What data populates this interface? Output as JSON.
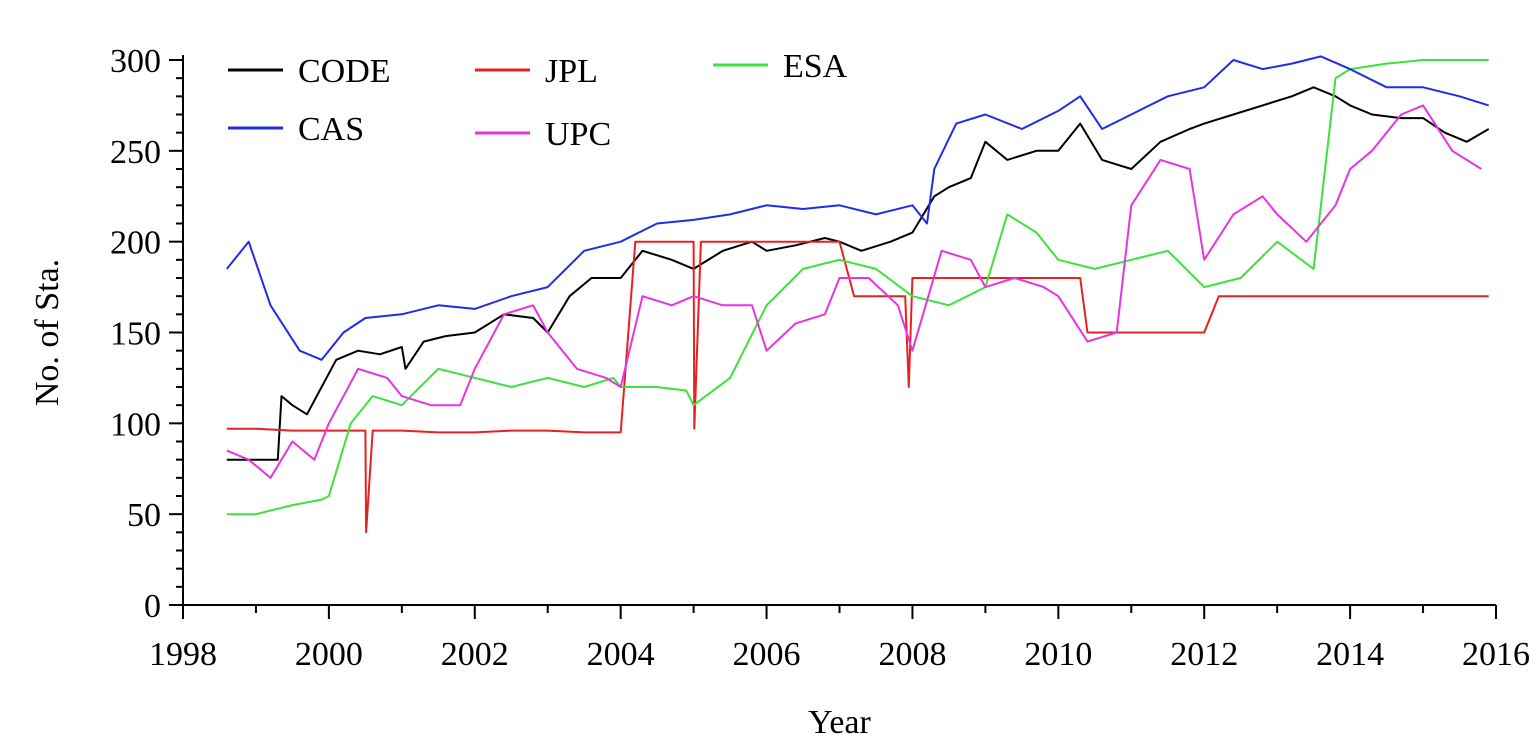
{
  "chart_data": {
    "type": "line",
    "title": "",
    "xlabel": "Year",
    "ylabel": "No. of Sta.",
    "xlim": [
      1998,
      2016
    ],
    "ylim": [
      0,
      300
    ],
    "xticks": [
      1998,
      2000,
      2002,
      2004,
      2006,
      2008,
      2010,
      2012,
      2014,
      2016
    ],
    "yticks": [
      0,
      50,
      100,
      150,
      200,
      250,
      300
    ],
    "grid": false,
    "legend_position": "top-left",
    "series": [
      {
        "name": "CODE",
        "color": "#000000",
        "x": [
          1998.6,
          1999.3,
          1999.35,
          1999.5,
          1999.7,
          1999.9,
          2000.1,
          2000.4,
          2000.7,
          2001.0,
          2001.05,
          2001.3,
          2001.6,
          2002.0,
          2002.4,
          2002.8,
          2003.0,
          2003.3,
          2003.6,
          2004.0,
          2004.3,
          2004.7,
          2005.0,
          2005.4,
          2005.8,
          2006.0,
          2006.4,
          2006.8,
          2007.0,
          2007.3,
          2007.7,
          2008.0,
          2008.3,
          2008.5,
          2008.8,
          2009.0,
          2009.3,
          2009.7,
          2010.0,
          2010.3,
          2010.6,
          2011.0,
          2011.4,
          2011.8,
          2012.0,
          2012.4,
          2012.8,
          2013.2,
          2013.5,
          2013.8,
          2014.0,
          2014.3,
          2014.7,
          2015.0,
          2015.3,
          2015.6,
          2015.9
        ],
        "y": [
          80,
          80,
          115,
          110,
          105,
          120,
          135,
          140,
          138,
          142,
          130,
          145,
          148,
          150,
          160,
          158,
          150,
          170,
          180,
          180,
          195,
          190,
          185,
          195,
          200,
          195,
          198,
          202,
          200,
          195,
          200,
          205,
          225,
          230,
          235,
          255,
          245,
          250,
          250,
          265,
          245,
          240,
          255,
          262,
          265,
          270,
          275,
          280,
          285,
          280,
          275,
          270,
          268,
          268,
          260,
          255,
          262
        ]
      },
      {
        "name": "JPL",
        "color": "#e8201f",
        "x": [
          1998.6,
          1999.0,
          1999.5,
          2000.0,
          2000.5,
          2000.51,
          2000.6,
          2001.0,
          2001.5,
          2002.0,
          2002.5,
          2003.0,
          2003.5,
          2004.0,
          2004.2,
          2005.0,
          2005.01,
          2005.1,
          2005.5,
          2006.0,
          2006.5,
          2007.0,
          2007.2,
          2007.5,
          2007.9,
          2007.95,
          2008.0,
          2008.5,
          2009.0,
          2009.5,
          2010.0,
          2010.3,
          2010.4,
          2011.0,
          2011.5,
          2012.0,
          2012.2,
          2013.0,
          2014.0,
          2015.0,
          2015.9
        ],
        "y": [
          97,
          97,
          96,
          96,
          96,
          40,
          96,
          96,
          95,
          95,
          96,
          96,
          95,
          95,
          200,
          200,
          97,
          200,
          200,
          200,
          200,
          200,
          170,
          170,
          170,
          120,
          180,
          180,
          180,
          180,
          180,
          180,
          150,
          150,
          150,
          150,
          170,
          170,
          170,
          170,
          170
        ]
      },
      {
        "name": "ESA",
        "color": "#3de23b",
        "x": [
          1998.6,
          1999.0,
          1999.5,
          1999.9,
          2000.0,
          2000.3,
          2000.6,
          2001.0,
          2001.5,
          2002.0,
          2002.5,
          2003.0,
          2003.5,
          2003.9,
          2004.0,
          2004.5,
          2004.9,
          2005.0,
          2005.5,
          2006.0,
          2006.5,
          2007.0,
          2007.5,
          2008.0,
          2008.5,
          2009.0,
          2009.3,
          2009.7,
          2010.0,
          2010.5,
          2011.0,
          2011.5,
          2012.0,
          2012.5,
          2013.0,
          2013.5,
          2013.8,
          2014.0,
          2014.5,
          2015.0,
          2015.5,
          2015.9
        ],
        "y": [
          50,
          50,
          55,
          58,
          60,
          100,
          115,
          110,
          130,
          125,
          120,
          125,
          120,
          125,
          120,
          120,
          118,
          110,
          125,
          165,
          185,
          190,
          185,
          170,
          165,
          175,
          215,
          205,
          190,
          185,
          190,
          195,
          175,
          180,
          200,
          185,
          290,
          295,
          298,
          300,
          300,
          300
        ]
      },
      {
        "name": "CAS",
        "color": "#1f2de8",
        "x": [
          1998.6,
          1998.9,
          1999.2,
          1999.6,
          1999.9,
          2000.2,
          2000.5,
          2001.0,
          2001.5,
          2002.0,
          2002.5,
          2003.0,
          2003.5,
          2004.0,
          2004.5,
          2005.0,
          2005.5,
          2006.0,
          2006.5,
          2007.0,
          2007.5,
          2008.0,
          2008.2,
          2008.3,
          2008.6,
          2009.0,
          2009.5,
          2010.0,
          2010.3,
          2010.6,
          2011.0,
          2011.5,
          2012.0,
          2012.4,
          2012.8,
          2013.2,
          2013.6,
          2014.0,
          2014.5,
          2015.0,
          2015.5,
          2015.9
        ],
        "y": [
          185,
          200,
          165,
          140,
          135,
          150,
          158,
          160,
          165,
          163,
          170,
          175,
          195,
          200,
          210,
          212,
          215,
          220,
          218,
          220,
          215,
          220,
          210,
          240,
          265,
          270,
          262,
          272,
          280,
          262,
          270,
          280,
          285,
          300,
          295,
          298,
          302,
          295,
          285,
          285,
          280,
          275
        ]
      },
      {
        "name": "UPC",
        "color": "#e833e0",
        "x": [
          1998.6,
          1998.9,
          1999.2,
          1999.5,
          1999.8,
          2000.0,
          2000.4,
          2000.8,
          2001.0,
          2001.4,
          2001.8,
          2002.0,
          2002.4,
          2002.8,
          2003.0,
          2003.4,
          2003.8,
          2004.0,
          2004.3,
          2004.7,
          2005.0,
          2005.4,
          2005.8,
          2006.0,
          2006.4,
          2006.8,
          2007.0,
          2007.4,
          2007.8,
          2008.0,
          2008.4,
          2008.8,
          2009.0,
          2009.4,
          2009.8,
          2010.0,
          2010.4,
          2010.8,
          2011.0,
          2011.4,
          2011.8,
          2012.0,
          2012.4,
          2012.8,
          2013.0,
          2013.4,
          2013.8,
          2014.0,
          2014.3,
          2014.7,
          2015.0,
          2015.4,
          2015.8
        ],
        "y": [
          85,
          80,
          70,
          90,
          80,
          100,
          130,
          125,
          115,
          110,
          110,
          130,
          160,
          165,
          150,
          130,
          125,
          120,
          170,
          165,
          170,
          165,
          165,
          140,
          155,
          160,
          180,
          180,
          165,
          140,
          195,
          190,
          175,
          180,
          175,
          170,
          145,
          150,
          220,
          245,
          240,
          190,
          215,
          225,
          215,
          200,
          220,
          240,
          250,
          270,
          275,
          250,
          240
        ]
      }
    ]
  }
}
